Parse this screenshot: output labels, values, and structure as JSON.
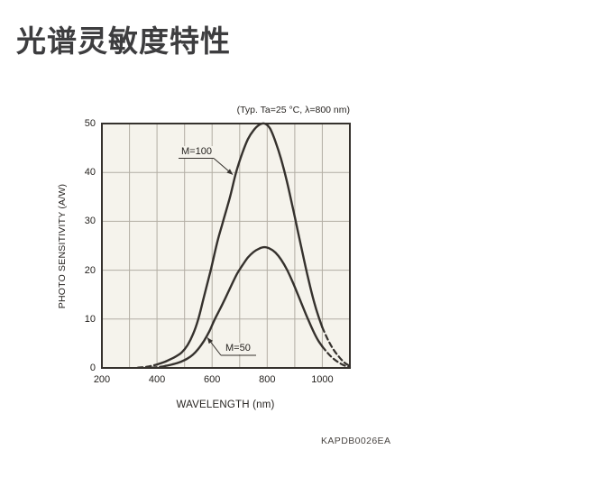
{
  "page": {
    "title": "光谱灵敏度特性",
    "figure_code": "KAPDB0026EA"
  },
  "chart_data": {
    "type": "line",
    "title": "光谱灵敏度特性",
    "condition_note": "(Typ. Ta=25 °C,  λ=800 nm)",
    "xlabel": "WAVELENGTH (nm)",
    "ylabel": "PHOTO SENSITIVITY (A/W)",
    "xlim": [
      200,
      1100
    ],
    "ylim": [
      0,
      50
    ],
    "x_ticks": [
      200,
      400,
      600,
      800,
      1000
    ],
    "y_ticks": [
      0,
      10,
      20,
      30,
      40,
      50
    ],
    "grid": "major gridlines every 100 nm (x) and 10 A/W (y)",
    "legend_position": "inline labels with leader arrows",
    "plot_bg_color": "#f5f3ec",
    "grid_color": "#b2ada3",
    "curve_color": "#35312d",
    "series": [
      {
        "name": "M=100",
        "solid_range": [
          390,
          1000
        ],
        "points": [
          [
            330,
            0.05
          ],
          [
            350,
            0.15
          ],
          [
            370,
            0.3
          ],
          [
            390,
            0.55
          ],
          [
            410,
            0.9
          ],
          [
            430,
            1.3
          ],
          [
            450,
            1.8
          ],
          [
            470,
            2.4
          ],
          [
            490,
            3.2
          ],
          [
            510,
            4.6
          ],
          [
            530,
            6.8
          ],
          [
            550,
            10
          ],
          [
            570,
            14.5
          ],
          [
            595,
            20
          ],
          [
            620,
            26
          ],
          [
            640,
            30
          ],
          [
            665,
            35
          ],
          [
            687,
            40
          ],
          [
            710,
            44
          ],
          [
            730,
            46.8
          ],
          [
            750,
            48.6
          ],
          [
            770,
            49.7
          ],
          [
            790,
            50
          ],
          [
            810,
            49
          ],
          [
            830,
            46.3
          ],
          [
            850,
            42.8
          ],
          [
            870,
            38.5
          ],
          [
            890,
            33.5
          ],
          [
            910,
            28.3
          ],
          [
            930,
            23
          ],
          [
            950,
            18
          ],
          [
            970,
            13.5
          ],
          [
            985,
            10.7
          ],
          [
            1000,
            8.3
          ],
          [
            1020,
            5.8
          ],
          [
            1040,
            3.8
          ],
          [
            1060,
            2.3
          ],
          [
            1080,
            1.1
          ],
          [
            1100,
            0.4
          ]
        ]
      },
      {
        "name": "M=50",
        "solid_range": [
          430,
          1000
        ],
        "points": [
          [
            380,
            0.05
          ],
          [
            400,
            0.15
          ],
          [
            415,
            0.25
          ],
          [
            430,
            0.4
          ],
          [
            450,
            0.65
          ],
          [
            470,
            0.95
          ],
          [
            490,
            1.35
          ],
          [
            510,
            1.9
          ],
          [
            530,
            2.7
          ],
          [
            550,
            3.9
          ],
          [
            570,
            5.5
          ],
          [
            590,
            7.5
          ],
          [
            610,
            10
          ],
          [
            630,
            12.2
          ],
          [
            650,
            14.5
          ],
          [
            670,
            16.9
          ],
          [
            690,
            19.2
          ],
          [
            710,
            21
          ],
          [
            730,
            22.6
          ],
          [
            750,
            23.7
          ],
          [
            770,
            24.4
          ],
          [
            790,
            24.7
          ],
          [
            810,
            24.4
          ],
          [
            830,
            23.6
          ],
          [
            850,
            22.2
          ],
          [
            870,
            20.3
          ],
          [
            890,
            17.9
          ],
          [
            910,
            15.2
          ],
          [
            930,
            12.4
          ],
          [
            950,
            9.7
          ],
          [
            970,
            7.2
          ],
          [
            985,
            5.6
          ],
          [
            1000,
            4.4
          ],
          [
            1020,
            3
          ],
          [
            1040,
            1.9
          ],
          [
            1060,
            1.1
          ],
          [
            1080,
            0.5
          ],
          [
            1100,
            0.15
          ]
        ]
      }
    ]
  }
}
